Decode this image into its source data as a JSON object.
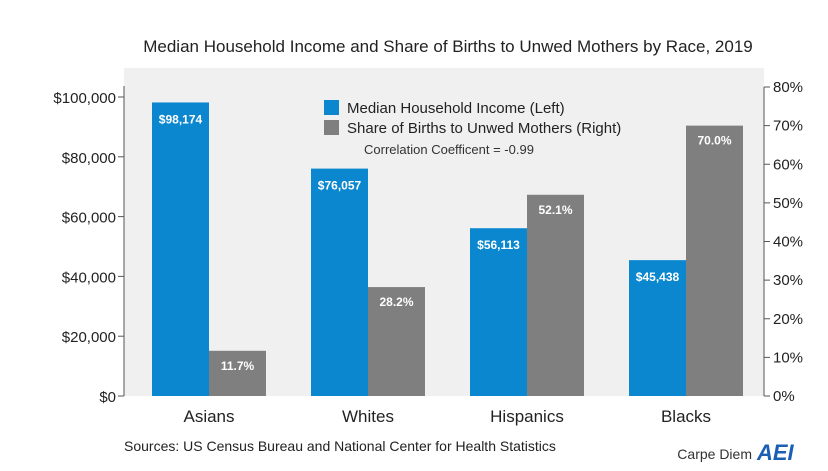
{
  "chart_data": {
    "type": "bar",
    "title": "Median Household Income and Share of Births to Unwed Mothers by Race, 2019",
    "categories": [
      "Asians",
      "Whites",
      "Hispanics",
      "Blacks"
    ],
    "series": [
      {
        "name": "Median Household Income (Left)",
        "axis": "left",
        "color": "#0a87cf",
        "values": [
          98174,
          76057,
          56113,
          45438
        ],
        "labels": [
          "$98,174",
          "$76,057",
          "$56,113",
          "$45,438"
        ]
      },
      {
        "name": "Share of Births to Unwed Mothers (Right)",
        "axis": "right",
        "color": "#7f7f7f",
        "values": [
          11.7,
          28.2,
          52.1,
          70.0
        ],
        "labels": [
          "11.7%",
          "28.2%",
          "52.1%",
          "70.0%"
        ]
      }
    ],
    "left_axis": {
      "ylim": [
        0,
        100000
      ],
      "ticks": [
        0,
        20000,
        40000,
        60000,
        80000,
        100000
      ],
      "tick_labels": [
        "$0",
        "$20,000",
        "$40,000",
        "$60,000",
        "$80,000",
        "$100,000"
      ]
    },
    "right_axis": {
      "ylim": [
        0,
        80
      ],
      "ticks": [
        0,
        10,
        20,
        30,
        40,
        50,
        60,
        70,
        80
      ],
      "tick_labels": [
        "0%",
        "10%",
        "20%",
        "30%",
        "40%",
        "50%",
        "60%",
        "70%",
        "80%"
      ]
    },
    "annotation": "Correlation Coefficent = -0.99",
    "legend_position": "top-center",
    "grid": false,
    "plot_background": "#f0f0f0"
  },
  "source": "Sources: US Census Bureau and National Center for Health Statistics",
  "brand": {
    "text": "Carpe Diem",
    "logo_text": "AEI"
  }
}
